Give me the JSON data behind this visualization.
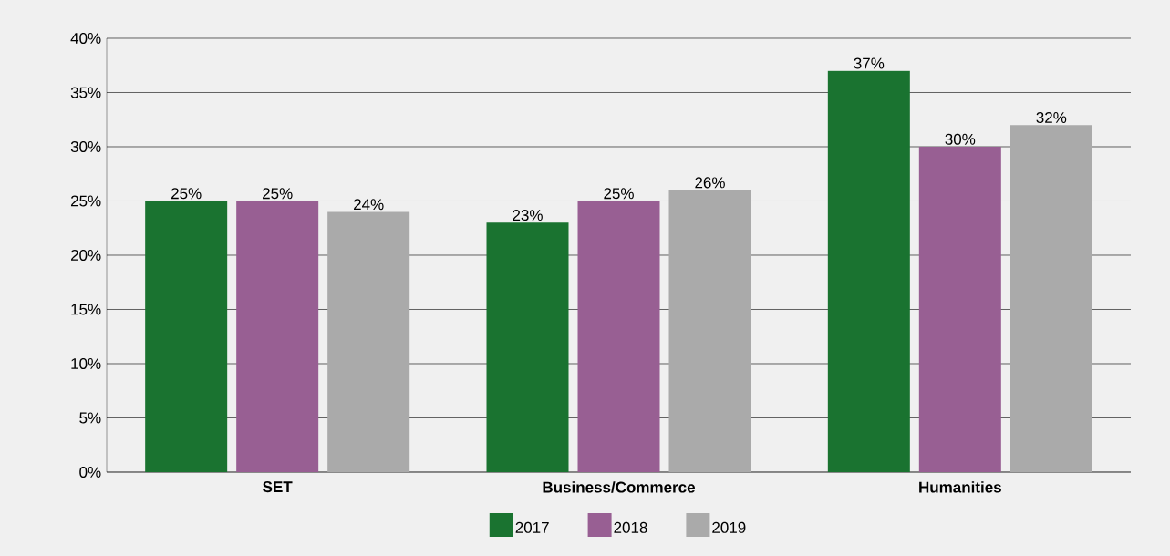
{
  "chart_data": {
    "type": "bar",
    "categories": [
      "SET",
      "Business/Commerce",
      "Humanities"
    ],
    "series": [
      {
        "name": "2017",
        "color": "#1a7330",
        "values": [
          25,
          23,
          37
        ],
        "value_labels": [
          "25%",
          "23%",
          "37%"
        ]
      },
      {
        "name": "2018",
        "color": "#985f93",
        "values": [
          25,
          25,
          30
        ],
        "value_labels": [
          "25%",
          "25%",
          "30%"
        ]
      },
      {
        "name": "2019",
        "color": "#aaaaaa",
        "values": [
          24,
          26,
          32
        ],
        "value_labels": [
          "24%",
          "26%",
          "32%"
        ]
      }
    ],
    "ylim": [
      0,
      40
    ],
    "yticks": [
      {
        "value": 0,
        "label": "0%"
      },
      {
        "value": 5,
        "label": "5%"
      },
      {
        "value": 10,
        "label": "10%"
      },
      {
        "value": 15,
        "label": "15%"
      },
      {
        "value": 20,
        "label": "20%"
      },
      {
        "value": 25,
        "label": "25%"
      },
      {
        "value": 30,
        "label": "30%"
      },
      {
        "value": 35,
        "label": "35%"
      },
      {
        "value": 40,
        "label": "40%"
      }
    ],
    "grid": "y",
    "legend": "bottom"
  }
}
